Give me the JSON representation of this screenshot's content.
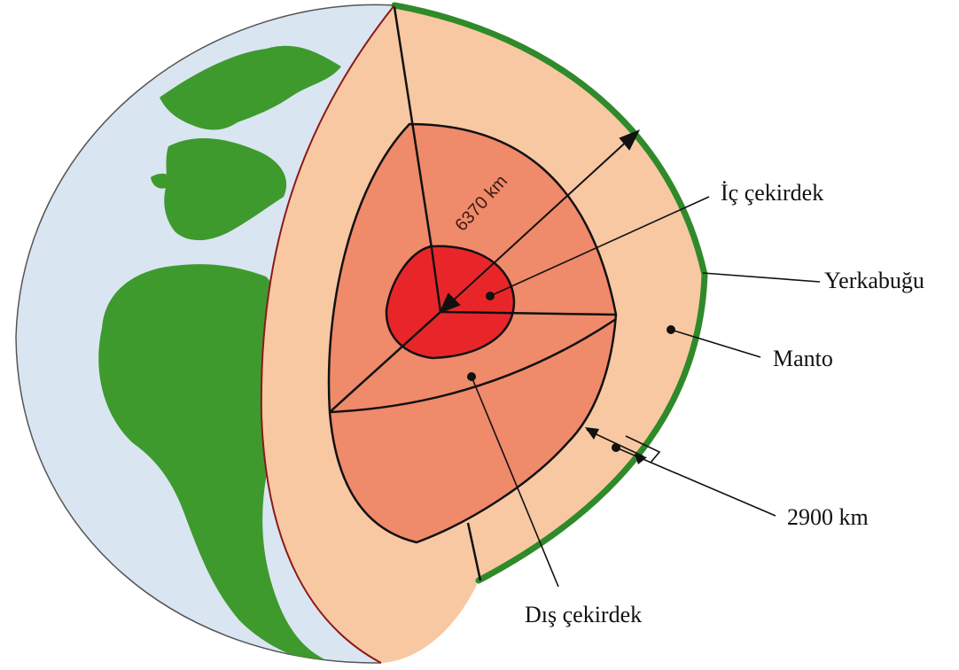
{
  "labels": {
    "inner_core": "İç çekirdek",
    "crust": "Yerkabuğu",
    "mantle": "Manto",
    "mantle_thickness": "2900 km",
    "outer_core": "Dış çekirdek",
    "radius": "6370 km"
  },
  "colors": {
    "ocean": "#d9e6f2",
    "land": "#3f9a2e",
    "crust": "#2f8a2a",
    "mantle": "#f8c8a2",
    "outer_core": "#ef8a6a",
    "inner_core": "#e8262a",
    "outline": "#111111",
    "cut_edge": "#8b1a1a"
  }
}
